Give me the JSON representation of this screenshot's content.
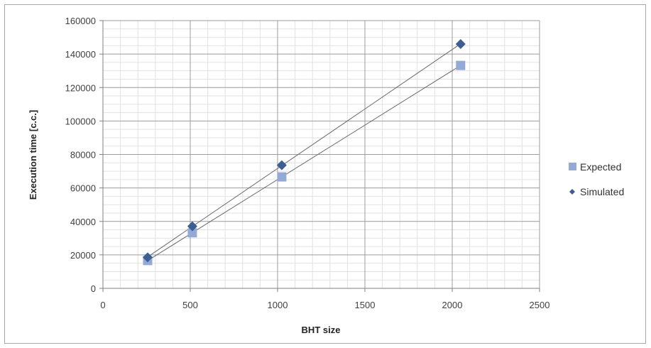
{
  "chart_data": {
    "type": "scatter",
    "title": "",
    "xlabel": "BHT size",
    "ylabel": "Execution time [c.c.]",
    "xlim": [
      0,
      2500
    ],
    "ylim": [
      0,
      160000
    ],
    "x_ticks": [
      0,
      500,
      1000,
      1500,
      2000,
      2500
    ],
    "y_ticks": [
      0,
      20000,
      40000,
      60000,
      80000,
      100000,
      120000,
      140000,
      160000
    ],
    "grid": true,
    "legend_position": "right",
    "trendlines": true,
    "series": [
      {
        "name": "Expected",
        "marker": "square",
        "color": "#95a9d6",
        "x": [
          256,
          512,
          1024,
          2048
        ],
        "y": [
          16600,
          33200,
          66600,
          133200
        ]
      },
      {
        "name": "Simulated",
        "marker": "diamond",
        "color": "#3c5e95",
        "x": [
          256,
          512,
          1024,
          2048
        ],
        "y": [
          18500,
          37100,
          73600,
          146000
        ]
      }
    ]
  }
}
